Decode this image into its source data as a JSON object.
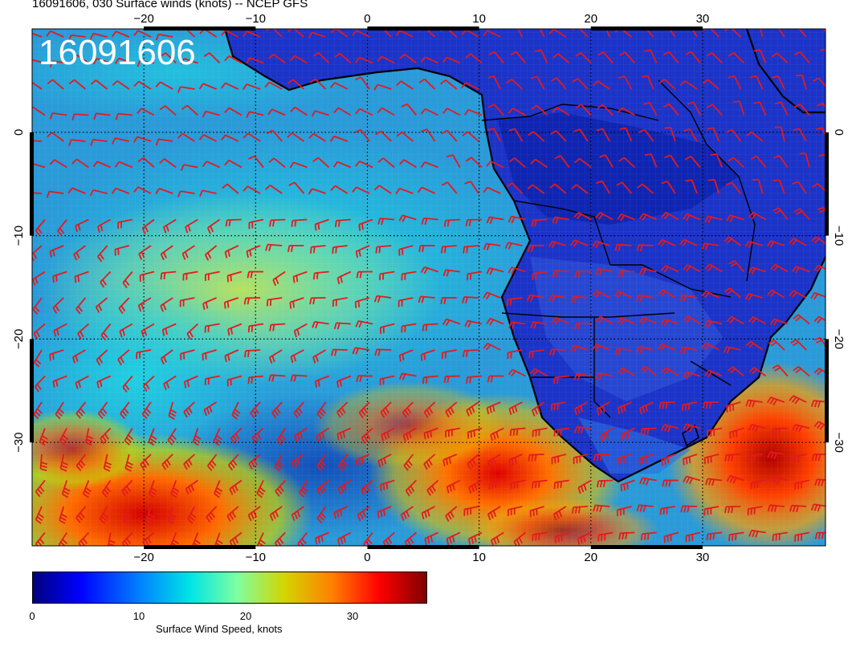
{
  "header": {
    "title": "16091606, 030 Surface winds (knots) -- NCEP GFS",
    "stamp": "16091606"
  },
  "map": {
    "lon_range": [
      -30,
      41
    ],
    "lat_range": [
      -40,
      10
    ],
    "lon_ticks": [
      {
        "value": -20,
        "label": "−20"
      },
      {
        "value": -10,
        "label": "−10"
      },
      {
        "value": 0,
        "label": "0"
      },
      {
        "value": 10,
        "label": "10"
      },
      {
        "value": 20,
        "label": "20"
      },
      {
        "value": 30,
        "label": "30"
      }
    ],
    "lat_ticks": [
      {
        "value": 0,
        "label": "0"
      },
      {
        "value": -10,
        "label": "−10"
      },
      {
        "value": -20,
        "label": "−20"
      },
      {
        "value": -30,
        "label": "−30"
      }
    ],
    "barb_color": "#e41a1c",
    "coast_color": "#000000"
  },
  "colorbar": {
    "title": "Surface Wind Speed, knots",
    "ticks": [
      {
        "value": 0,
        "label": "0"
      },
      {
        "value": 10,
        "label": "10"
      },
      {
        "value": 20,
        "label": "20"
      },
      {
        "value": 30,
        "label": "30"
      }
    ],
    "max": 37,
    "stops": [
      "#00007f",
      "#0000ff",
      "#0080ff",
      "#00e5e5",
      "#7fffa0",
      "#d4d400",
      "#ff8000",
      "#ff0000",
      "#7f0000"
    ]
  }
}
